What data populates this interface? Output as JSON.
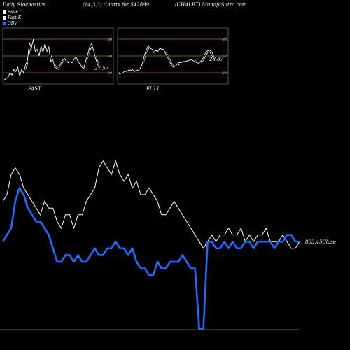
{
  "header": {
    "left": "Daily Stochastics",
    "center": "(14,3,3) Charts for 542899",
    "right": "(CHALET) MunafaSutra.com"
  },
  "legend": [
    {
      "label": "Slow  D",
      "color": "#ffffff"
    },
    {
      "label": "Fast K",
      "color": "#ffffff"
    },
    {
      "label": "OBV",
      "color": "#1e6bff"
    }
  ],
  "colors": {
    "background": "#000000",
    "price": "#ffffff",
    "obv": "#1e6bff",
    "levels": "#b5751c"
  },
  "chart_data": [
    {
      "type": "line",
      "title": "FAST",
      "ylim": [
        0,
        100
      ],
      "ticks": [
        20,
        50,
        80
      ],
      "level_lines": [
        20,
        50,
        80
      ],
      "last_value_label": "27.57",
      "x": [
        1,
        2,
        3,
        4,
        5,
        6,
        7,
        8,
        9,
        10,
        11,
        12,
        13,
        14,
        15,
        16,
        17,
        18,
        19,
        20,
        21,
        22,
        23,
        24,
        25,
        26,
        27,
        28,
        29,
        30,
        31,
        32,
        33,
        34,
        35,
        36,
        37,
        38,
        39,
        40,
        41,
        42,
        43,
        44,
        45,
        46,
        47,
        48,
        49,
        50
      ],
      "series": [
        {
          "name": "Slow  D",
          "values": [
            8,
            9,
            11,
            15,
            19,
            23,
            26,
            24,
            20,
            21,
            24,
            26,
            35,
            55,
            70,
            72,
            67,
            58,
            55,
            58,
            62,
            65,
            64,
            60,
            52,
            43,
            35,
            30,
            29,
            32,
            38,
            43,
            42,
            40,
            39,
            40,
            42,
            46,
            43,
            38,
            33,
            30,
            36,
            46,
            58,
            66,
            64,
            52,
            42,
            35
          ]
        },
        {
          "name": "Fast K",
          "values": [
            7,
            10,
            12,
            20,
            16,
            26,
            22,
            30,
            14,
            26,
            20,
            34,
            42,
            74,
            64,
            80,
            58,
            62,
            50,
            68,
            56,
            72,
            58,
            66,
            40,
            44,
            30,
            28,
            26,
            36,
            42,
            46,
            40,
            38,
            40,
            38,
            44,
            48,
            40,
            36,
            30,
            28,
            42,
            52,
            66,
            72,
            60,
            46,
            36,
            28
          ]
        }
      ]
    },
    {
      "type": "line",
      "title": "FULL",
      "ylim": [
        0,
        100
      ],
      "ticks": [
        20,
        50,
        80
      ],
      "level_lines": [
        20,
        50,
        80
      ],
      "last_value_label": "28.87",
      "x": [
        1,
        2,
        3,
        4,
        5,
        6,
        7,
        8,
        9,
        10,
        11,
        12,
        13,
        14,
        15,
        16,
        17,
        18,
        19,
        20,
        21,
        22,
        23,
        24,
        25,
        26,
        27,
        28,
        29,
        30,
        31,
        32,
        33,
        34,
        35,
        36,
        37,
        38,
        39,
        40,
        41,
        42,
        43,
        44,
        45,
        46,
        47,
        48,
        49,
        50
      ],
      "series": [
        {
          "name": "Slow  D",
          "values": [
            20,
            20,
            21,
            22,
            23,
            24,
            25,
            25,
            24,
            24,
            25,
            27,
            32,
            42,
            55,
            62,
            65,
            64,
            60,
            58,
            58,
            60,
            62,
            62,
            58,
            52,
            45,
            38,
            33,
            31,
            32,
            35,
            38,
            40,
            40,
            40,
            41,
            42,
            43,
            42,
            40,
            38,
            38,
            40,
            46,
            52,
            58,
            60,
            56,
            48
          ]
        },
        {
          "name": "Fast K",
          "values": [
            18,
            19,
            20,
            23,
            22,
            25,
            24,
            26,
            22,
            25,
            24,
            28,
            36,
            50,
            60,
            68,
            64,
            62,
            56,
            60,
            58,
            64,
            62,
            62,
            54,
            48,
            40,
            34,
            30,
            32,
            36,
            38,
            38,
            40,
            40,
            41,
            42,
            44,
            42,
            40,
            38,
            37,
            40,
            44,
            52,
            58,
            60,
            56,
            50,
            44
          ]
        }
      ]
    },
    {
      "type": "line",
      "title": "",
      "last_value_label": "883.45Close",
      "x": [
        1,
        2,
        3,
        4,
        5,
        6,
        7,
        8,
        9,
        10,
        11,
        12,
        13,
        14,
        15,
        16,
        17,
        18,
        19,
        20,
        21,
        22,
        23,
        24,
        25,
        26,
        27,
        28,
        29,
        30,
        31,
        32,
        33,
        34,
        35,
        36,
        37,
        38,
        39,
        40,
        41,
        42,
        43,
        44,
        45,
        46,
        47,
        48,
        49,
        50,
        51,
        52,
        53,
        54,
        55,
        56,
        57,
        58,
        59,
        60,
        61,
        62,
        63,
        64,
        65,
        66,
        67,
        68,
        69,
        70,
        71,
        72
      ],
      "series": [
        {
          "name": "Price",
          "values": [
            4,
            5,
            8,
            9,
            8,
            6,
            5,
            4,
            3,
            2,
            4,
            3,
            3,
            1,
            0,
            2,
            2,
            0,
            2,
            2,
            4,
            5,
            6,
            9,
            10,
            9,
            8,
            10,
            8,
            7,
            8,
            6,
            7,
            5,
            5,
            6,
            5,
            4,
            2,
            2,
            3,
            4,
            3,
            2,
            1,
            0,
            -1,
            -2,
            -3,
            -2,
            -1,
            -2,
            -1,
            -1,
            0,
            -1,
            -1,
            0,
            -2,
            -1,
            -2,
            -1,
            -1,
            0,
            -2,
            -2,
            -2,
            -1,
            -2,
            -3,
            -3,
            -2
          ]
        },
        {
          "name": "OBV",
          "values": [
            -2,
            -1,
            0,
            4,
            6,
            5,
            3,
            2,
            1,
            1,
            0,
            -1,
            -3,
            -5,
            -5,
            -4,
            -4,
            -5,
            -4,
            -5,
            -5,
            -4,
            -3,
            -4,
            -4,
            -3,
            -3,
            -2,
            -3,
            -3,
            -4,
            -3,
            -5,
            -6,
            -6,
            -7,
            -7,
            -5,
            -6,
            -6,
            -5,
            -5,
            -5,
            -4,
            -5,
            -6,
            -6,
            -15,
            -15,
            -2,
            -2,
            -3,
            -3,
            -2,
            -3,
            -2,
            -3,
            -3,
            -2,
            -2,
            -3,
            -2,
            -2,
            -2,
            -2,
            -3,
            -2,
            -2,
            -1,
            -1,
            -2,
            -2
          ]
        }
      ]
    }
  ]
}
